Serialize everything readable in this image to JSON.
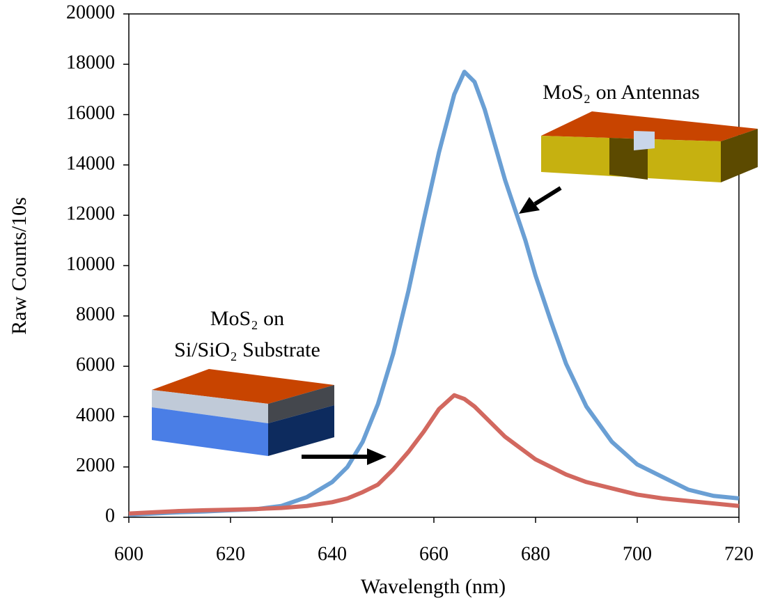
{
  "chart_data": {
    "type": "line",
    "x_label": "Wavelength (nm)",
    "y_label": "Raw Counts/10s",
    "x": [
      600,
      605,
      610,
      615,
      620,
      625,
      630,
      635,
      640,
      643,
      646,
      649,
      652,
      655,
      658,
      661,
      664,
      666,
      668,
      670,
      672,
      674,
      676,
      678,
      680,
      683,
      686,
      690,
      695,
      700,
      705,
      710,
      715,
      720
    ],
    "series": [
      {
        "name": "MoS₂ on Antennas",
        "color": "#6a9fd4",
        "values": [
          100,
          150,
          200,
          230,
          280,
          320,
          450,
          800,
          1400,
          2000,
          3000,
          4500,
          6500,
          9000,
          11800,
          14500,
          16800,
          17700,
          17300,
          16200,
          14800,
          13400,
          12200,
          11000,
          9600,
          7800,
          6100,
          4400,
          3000,
          2100,
          1600,
          1100,
          850,
          750
        ]
      },
      {
        "name": "MoS₂ on Si/SiO₂ Substrate",
        "color": "#d2685f",
        "values": [
          150,
          200,
          250,
          280,
          300,
          330,
          370,
          450,
          600,
          750,
          1000,
          1300,
          1900,
          2600,
          3400,
          4300,
          4850,
          4700,
          4400,
          4000,
          3600,
          3200,
          2900,
          2600,
          2300,
          2000,
          1700,
          1400,
          1150,
          900,
          750,
          650,
          550,
          450
        ]
      }
    ],
    "annotations": [
      "MoS₂ on Antennas",
      "MoS₂ on",
      "Si/SiO₂ Substrate"
    ],
    "xlim": [
      600,
      720
    ],
    "xticks": [
      600,
      620,
      640,
      660,
      680,
      700,
      720
    ],
    "ylim": [
      0,
      20000
    ],
    "yticks": [
      0,
      2000,
      4000,
      6000,
      8000,
      10000,
      12000,
      14000,
      16000,
      18000,
      20000
    ],
    "grid": false
  }
}
